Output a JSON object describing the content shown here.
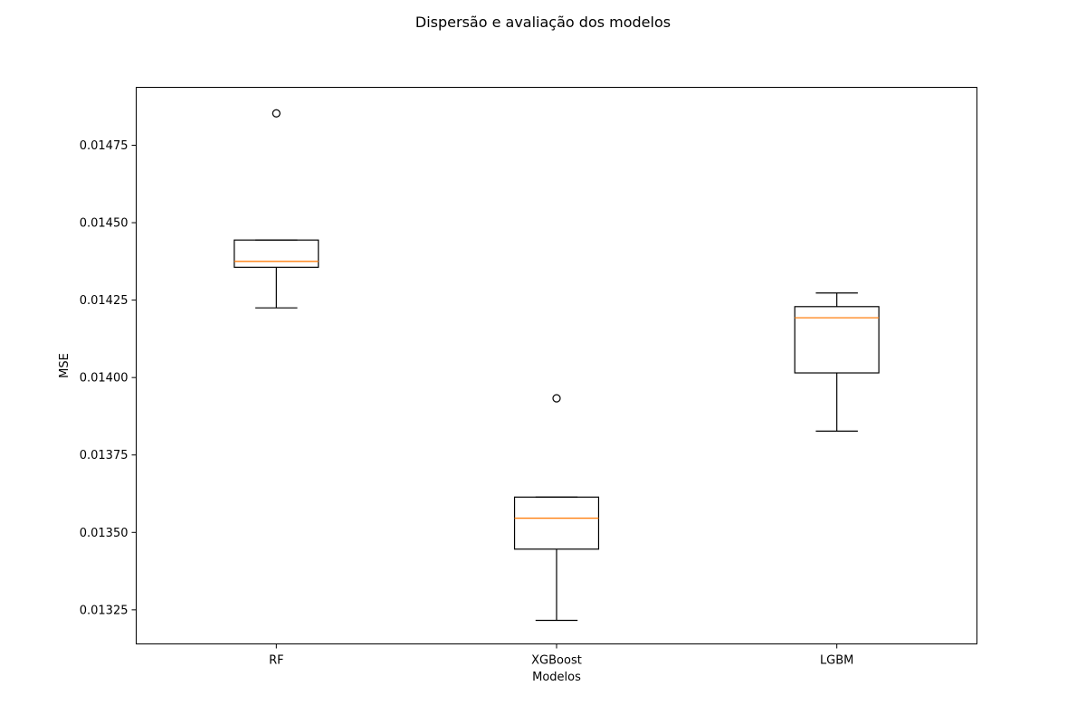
{
  "chart_data": {
    "type": "box",
    "title": "Dispersão e avaliação dos modelos",
    "xlabel": "Modelos",
    "ylabel": "MSE",
    "ylim": [
      0.01314,
      0.014937
    ],
    "y_ticks": [
      0.01325,
      0.0135,
      0.01375,
      0.014,
      0.01425,
      0.0145,
      0.01475
    ],
    "y_tick_labels": [
      "0.01325",
      "0.01350",
      "0.01375",
      "0.01400",
      "0.01425",
      "0.01450",
      "0.01475"
    ],
    "categories": [
      "RF",
      "XGBoost",
      "LGBM"
    ],
    "grid": false,
    "colors": {
      "box": "#000000",
      "median": "#ff7f0e"
    },
    "boxes": [
      {
        "name": "RF",
        "whisker_low": 0.014225,
        "q1": 0.014356,
        "median": 0.014375,
        "q3": 0.014444,
        "whisker_high": 0.014444,
        "outliers": [
          0.014853
        ]
      },
      {
        "name": "XGBoost",
        "whisker_low": 0.013216,
        "q1": 0.013446,
        "median": 0.013546,
        "q3": 0.013614,
        "whisker_high": 0.013614,
        "outliers": [
          0.013933
        ]
      },
      {
        "name": "LGBM",
        "whisker_low": 0.013827,
        "q1": 0.014015,
        "median": 0.014193,
        "q3": 0.014229,
        "whisker_high": 0.014273,
        "outliers": []
      }
    ]
  }
}
